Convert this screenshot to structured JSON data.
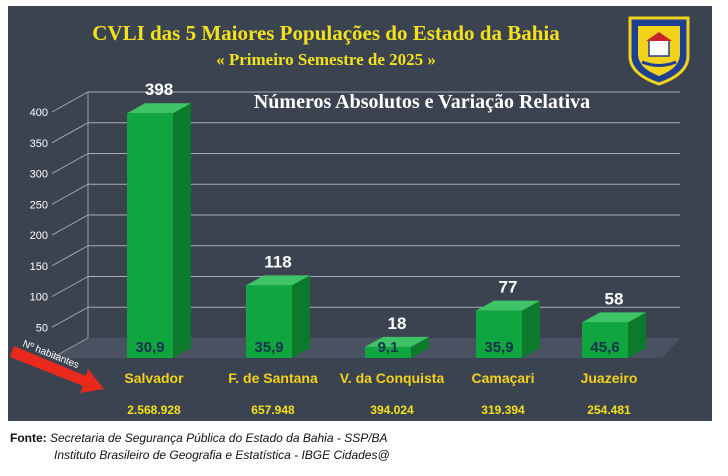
{
  "chart_data": {
    "type": "bar",
    "title": "CVLI das 5 Maiores Populações do Estado da Bahia",
    "subtitle": "« Primeiro Semestre de 2025 »",
    "heading": "Números Absolutos e Variação Relativa",
    "categories": [
      "Salvador",
      "F. de Santana",
      "V. da Conquista",
      "Camaçari",
      "Juazeiro"
    ],
    "values": [
      398,
      118,
      18,
      77,
      58
    ],
    "value_labels": [
      "398",
      "118",
      "18",
      "77",
      "58"
    ],
    "relative_labels": [
      "30,9",
      "35,9",
      "9,1",
      "35,9",
      "45,6"
    ],
    "population_labels": [
      "2.568.928",
      "657.948",
      "394.024",
      "319.394",
      "254.481"
    ],
    "population_arrow_label": "Nº habitantes",
    "yticks": [
      50,
      100,
      150,
      200,
      250,
      300,
      350,
      400
    ],
    "ylim": [
      0,
      400
    ],
    "grid": true,
    "colors": {
      "bar_front": "#0fa63f",
      "bar_top": "#3ec466",
      "bar_side": "#0b7a2c",
      "background": "#3b4250",
      "title": "#f2e21c",
      "arrow": "#e8291c"
    }
  },
  "footer": {
    "label": "Fonte:",
    "source_1": "Secretaria de Segurança Pública do Estado da Bahia - SSP/BA",
    "source_2": "Instituto Brasileiro de Geografia e Estatística - IBGE Cidades@"
  }
}
